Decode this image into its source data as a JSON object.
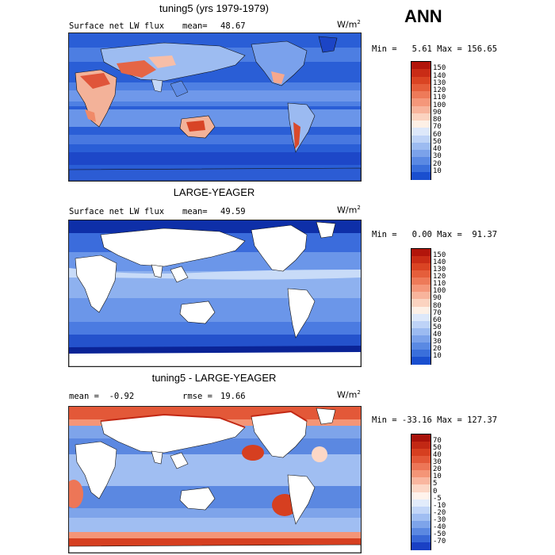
{
  "header": {
    "season": "ANN"
  },
  "panels": [
    {
      "title": "tuning5 (yrs 1979-1979)",
      "left_label": "Surface net LW flux",
      "stat_label": "mean=",
      "stat_value": "48.67",
      "units_base": "W/m",
      "units_exp": "2",
      "range_text": "Min =   5.61 Max = 156.65",
      "colorbar": {
        "labels": [
          "150",
          "140",
          "130",
          "120",
          "110",
          "100",
          "90",
          "80",
          "70",
          "60",
          "50",
          "40",
          "30",
          "20",
          "10"
        ],
        "colors": [
          "#b2150b",
          "#c92c16",
          "#da4423",
          "#e55e3b",
          "#ee7a59",
          "#f5977a",
          "#f8b49c",
          "#fbd3c0",
          "#fdf0e6",
          "#dde8fa",
          "#bed3f7",
          "#9cbbf1",
          "#7ba2ea",
          "#5a89e3",
          "#3a6fdb",
          "#1a4fcf"
        ]
      }
    },
    {
      "title": "LARGE-YEAGER",
      "left_label": "Surface net LW flux",
      "stat_label": "mean=",
      "stat_value": "49.59",
      "units_base": "W/m",
      "units_exp": "2",
      "range_text": "Min =   0.00 Max =  91.37",
      "colorbar": {
        "labels": [
          "150",
          "140",
          "130",
          "120",
          "110",
          "100",
          "90",
          "80",
          "70",
          "60",
          "50",
          "40",
          "30",
          "20",
          "10"
        ],
        "colors": [
          "#b2150b",
          "#c92c16",
          "#da4423",
          "#e55e3b",
          "#ee7a59",
          "#f5977a",
          "#f8b49c",
          "#fbd3c0",
          "#fdf0e6",
          "#dde8fa",
          "#bed3f7",
          "#9cbbf1",
          "#7ba2ea",
          "#5a89e3",
          "#3a6fdb",
          "#1a4fcf"
        ]
      }
    },
    {
      "title": "tuning5 - LARGE-YEAGER",
      "left_label": "mean =  -0.92",
      "stat_label": "rmse =",
      "stat_value": "19.66",
      "units_base": "W/m",
      "units_exp": "2",
      "range_text": "Min = -33.16 Max = 127.37",
      "colorbar": {
        "labels": [
          "70",
          "50",
          "40",
          "30",
          "20",
          "10",
          "5",
          "0",
          "-5",
          "-10",
          "-20",
          "-30",
          "-40",
          "-50",
          "-70"
        ],
        "colors": [
          "#a8120a",
          "#c22814",
          "#d63f20",
          "#e35838",
          "#ed7657",
          "#f49577",
          "#f9b69f",
          "#fcd7c6",
          "#fff3ec",
          "#e2ecfb",
          "#c2d6f8",
          "#a0bef2",
          "#7ea4ea",
          "#5b88e1",
          "#3867d6",
          "#1a40c4"
        ]
      }
    }
  ]
}
